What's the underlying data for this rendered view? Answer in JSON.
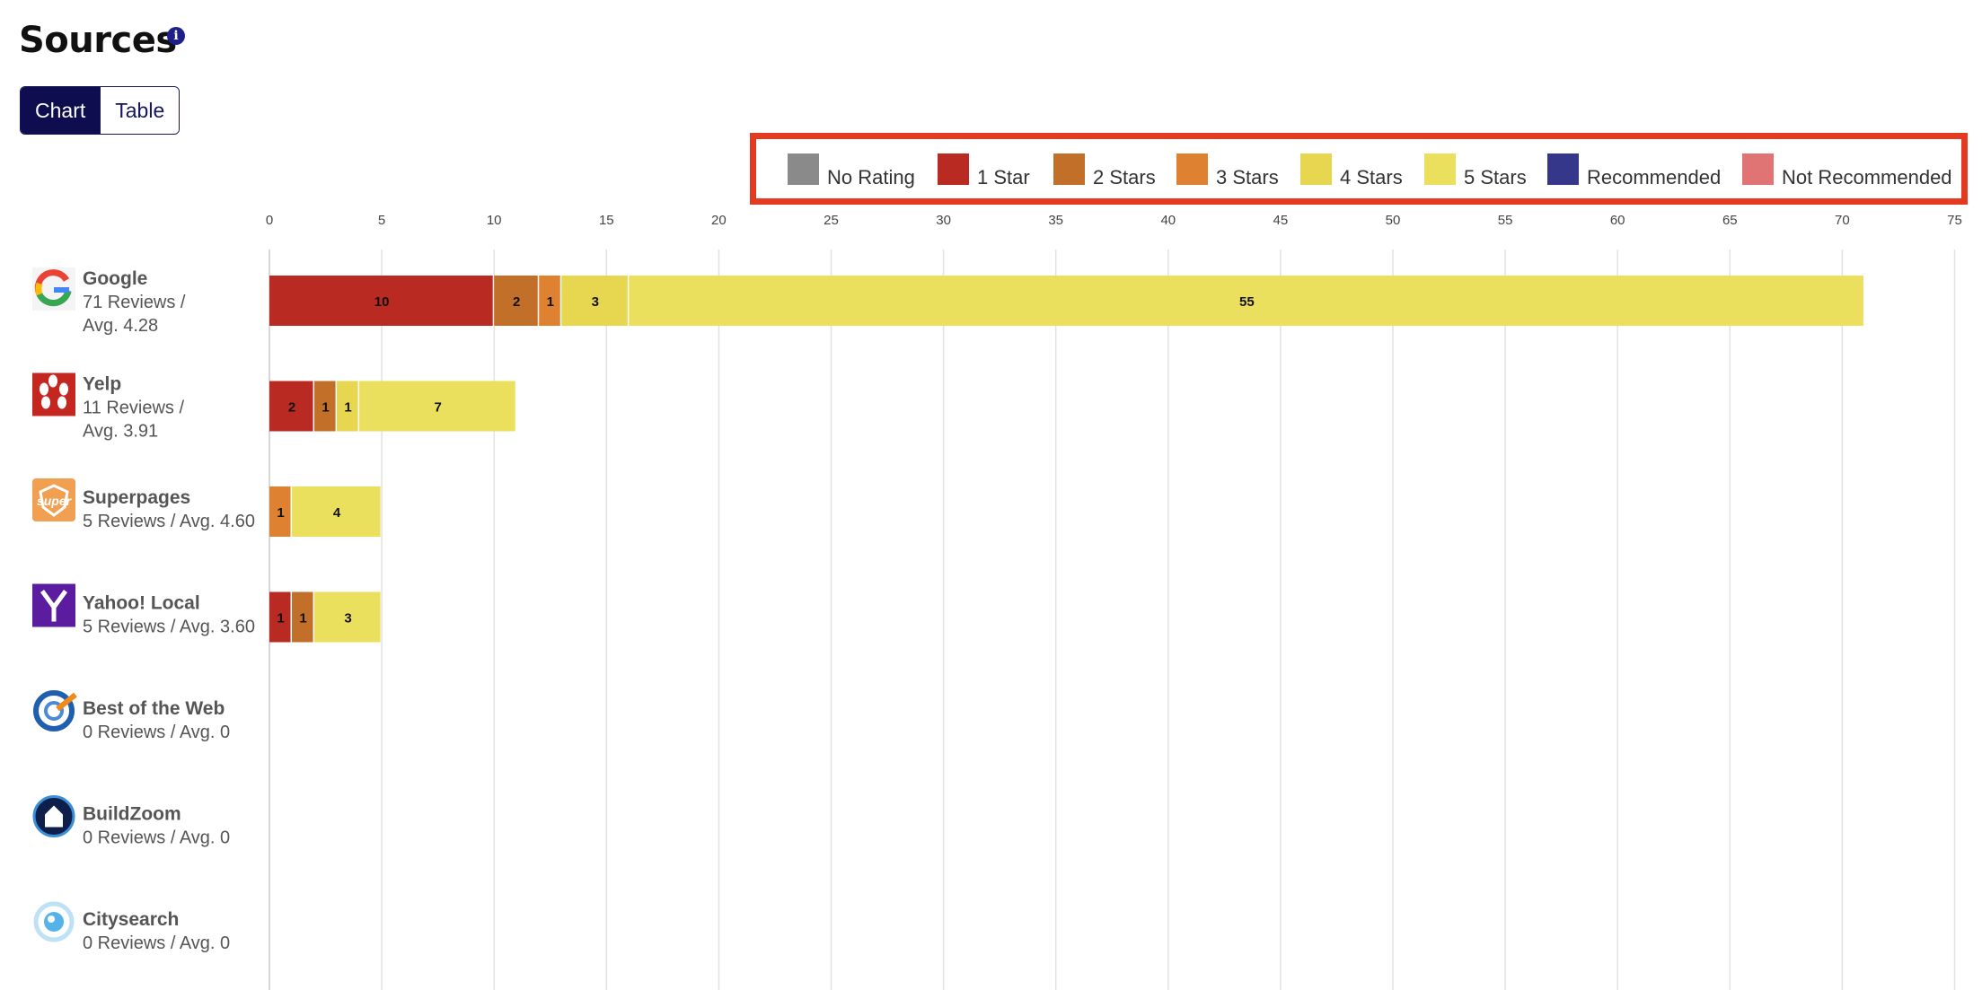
{
  "page": {
    "title": "Sources",
    "info_icon": "info-icon",
    "toggle": {
      "chart_label": "Chart",
      "table_label": "Table",
      "selected": "Chart"
    }
  },
  "colors": {
    "No Rating": "#8a8a8a",
    "1 Star": "#b82a22",
    "2 Stars": "#c27029",
    "3 Stars": "#de8130",
    "4 Stars": "#e6d650",
    "5 Stars": "#ebe05e",
    "Recommended": "#35378a",
    "Not Recommended": "#e07474",
    "highlight_border": "#e53a22",
    "toggle_active": "#0d0d4f"
  },
  "chart_data": {
    "type": "bar",
    "orientation": "horizontal",
    "stacked": true,
    "title": "",
    "xlabel": "",
    "ylabel": "",
    "xlim": [
      0,
      75
    ],
    "x_ticks": [
      0,
      5,
      10,
      15,
      20,
      25,
      30,
      35,
      40,
      45,
      50,
      55,
      60,
      65,
      70,
      75
    ],
    "grid": true,
    "legend_position": "top-right",
    "legend_highlighted": true,
    "legend": [
      "No Rating",
      "1 Star",
      "2 Stars",
      "3 Stars",
      "4 Stars",
      "5 Stars",
      "Recommended",
      "Not Recommended"
    ],
    "categories": [
      {
        "name": "Google",
        "subtitle_line1": "71 Reviews /",
        "subtitle_line2": "Avg. 4.28",
        "logo": "google-logo-icon"
      },
      {
        "name": "Yelp",
        "subtitle_line1": "11 Reviews /",
        "subtitle_line2": "Avg. 3.91",
        "logo": "yelp-logo-icon"
      },
      {
        "name": "Superpages",
        "subtitle_line1": "5 Reviews / Avg. 4.60",
        "subtitle_line2": "",
        "logo": "superpages-logo-icon"
      },
      {
        "name": "Yahoo! Local",
        "subtitle_line1": "5 Reviews / Avg. 3.60",
        "subtitle_line2": "",
        "logo": "yahoo-logo-icon"
      },
      {
        "name": "Best of the Web",
        "subtitle_line1": "0 Reviews / Avg. 0",
        "subtitle_line2": "",
        "logo": "best-of-the-web-logo-icon"
      },
      {
        "name": "BuildZoom",
        "subtitle_line1": "0 Reviews / Avg. 0",
        "subtitle_line2": "",
        "logo": "buildzoom-logo-icon"
      },
      {
        "name": "Citysearch",
        "subtitle_line1": "0 Reviews / Avg. 0",
        "subtitle_line2": "",
        "logo": "citysearch-logo-icon"
      }
    ],
    "series": [
      {
        "name": "No Rating",
        "values": [
          0,
          0,
          0,
          0,
          0,
          0,
          0
        ]
      },
      {
        "name": "1 Star",
        "values": [
          10,
          2,
          0,
          1,
          0,
          0,
          0
        ]
      },
      {
        "name": "2 Stars",
        "values": [
          2,
          1,
          0,
          1,
          0,
          0,
          0
        ]
      },
      {
        "name": "3 Stars",
        "values": [
          1,
          0,
          1,
          0,
          0,
          0,
          0
        ]
      },
      {
        "name": "4 Stars",
        "values": [
          3,
          1,
          0,
          0,
          0,
          0,
          0
        ]
      },
      {
        "name": "5 Stars",
        "values": [
          55,
          7,
          4,
          3,
          0,
          0,
          0
        ]
      },
      {
        "name": "Recommended",
        "values": [
          0,
          0,
          0,
          0,
          0,
          0,
          0
        ]
      },
      {
        "name": "Not Recommended",
        "values": [
          0,
          0,
          0,
          0,
          0,
          0,
          0
        ]
      }
    ]
  }
}
